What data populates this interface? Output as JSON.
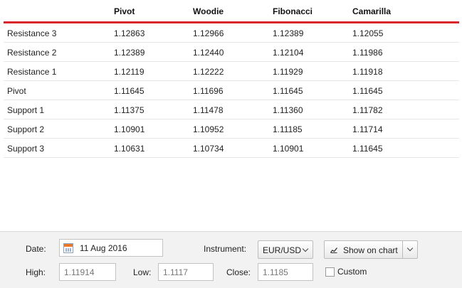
{
  "table": {
    "headers": [
      "",
      "Pivot",
      "Woodie",
      "Fibonacci",
      "Camarilla"
    ],
    "rows": [
      [
        "Resistance 3",
        "1.12863",
        "1.12966",
        "1.12389",
        "1.12055"
      ],
      [
        "Resistance 2",
        "1.12389",
        "1.12440",
        "1.12104",
        "1.11986"
      ],
      [
        "Resistance 1",
        "1.12119",
        "1.12222",
        "1.11929",
        "1.11918"
      ],
      [
        "Pivot",
        "1.11645",
        "1.11696",
        "1.11645",
        "1.11645"
      ],
      [
        "Support 1",
        "1.11375",
        "1.11478",
        "1.11360",
        "1.11782"
      ],
      [
        "Support 2",
        "1.10901",
        "1.10952",
        "1.11185",
        "1.11714"
      ],
      [
        "Support 3",
        "1.10631",
        "1.10734",
        "1.10901",
        "1.11645"
      ]
    ]
  },
  "form": {
    "date_label": "Date:",
    "date_value": "11 Aug 2016",
    "instrument_label": "Instrument:",
    "instrument_value": "EUR/USD",
    "show_chart_label": "Show on chart",
    "high_label": "High:",
    "high_value": "1.11914",
    "low_label": "Low:",
    "low_value": "1.1117",
    "close_label": "Close:",
    "close_value": "1.1185",
    "custom_label": "Custom",
    "custom_checked": false
  },
  "colors": {
    "accent": "#d9262b"
  },
  "icons": {
    "date": "calendar-icon",
    "chart": "chart-icon",
    "dropdown": "chevron-down-icon"
  }
}
